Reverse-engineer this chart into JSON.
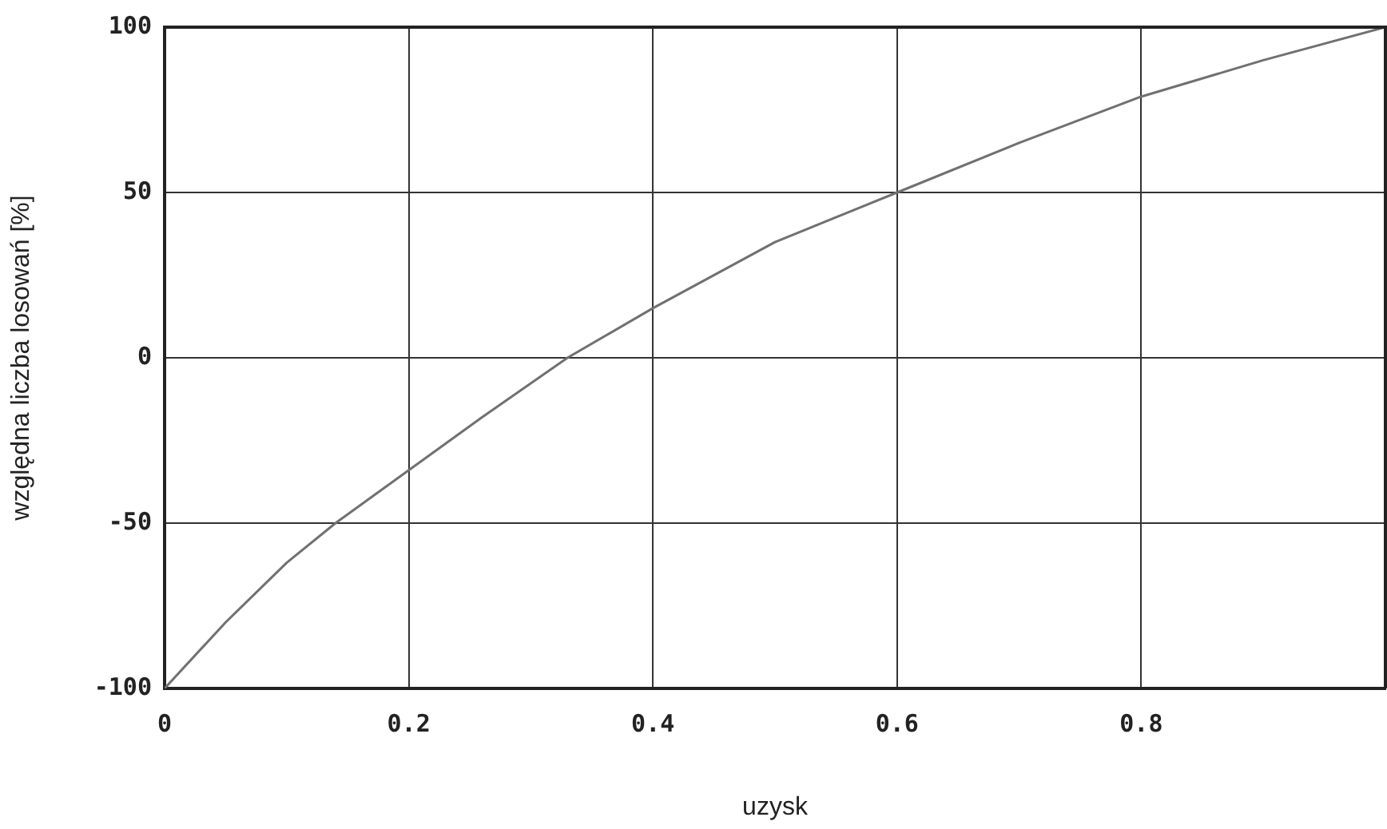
{
  "chart_data": {
    "type": "line",
    "xlabel": "uzysk",
    "ylabel": "względna liczba losowań [%]",
    "x": [
      0,
      0.05,
      0.1,
      0.14,
      0.2,
      0.26,
      0.33,
      0.4,
      0.5,
      0.6,
      0.7,
      0.8,
      0.9,
      1
    ],
    "series": [
      {
        "color": "#707070",
        "values": [
          -100,
          -80,
          -62,
          -50,
          -34,
          -18,
          0,
          15,
          35,
          50,
          65,
          79,
          90,
          100
        ]
      }
    ],
    "xlim": [
      0,
      1
    ],
    "xticks": [
      0,
      0.2,
      0.4,
      0.6,
      0.8
    ],
    "ylim": [
      -100,
      100
    ],
    "yticks": [
      -100,
      -50,
      0,
      50,
      100
    ],
    "grid": true,
    "legend": false,
    "marker": "none",
    "line_style": "solid"
  }
}
